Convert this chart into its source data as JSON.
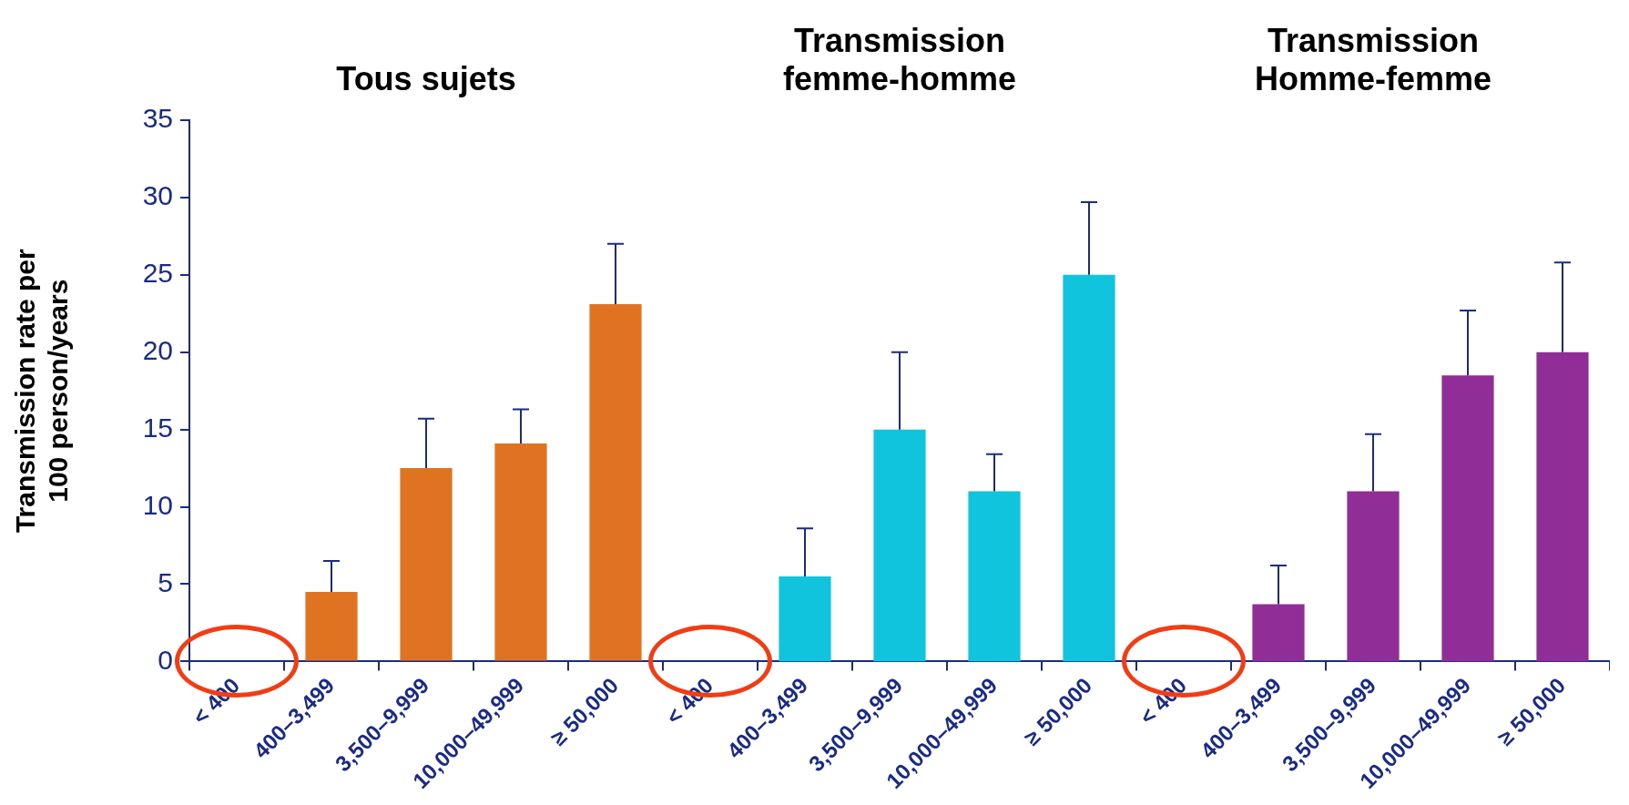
{
  "chart_data": [
    {
      "type": "bar",
      "title": "Tous sujets",
      "ylabel": "Transmission rate per 100 person/years",
      "categories": [
        "< 400",
        "400–3,499",
        "3,500–9,999",
        "10,000–49,999",
        "≥ 50,000"
      ],
      "values": [
        0,
        4.5,
        12.5,
        14.1,
        23.1
      ],
      "errors": [
        null,
        [
          4.5,
          6.5
        ],
        [
          12.5,
          15.7
        ],
        [
          14.1,
          16.3
        ],
        [
          23.1,
          27.0
        ]
      ],
      "color": "#e07322",
      "ylim": [
        0,
        35
      ],
      "yticks": [
        0,
        5,
        10,
        15,
        20,
        25,
        30,
        35
      ],
      "grid": false,
      "legend": false
    },
    {
      "type": "bar",
      "title": "Transmission femme-homme",
      "categories": [
        "< 400",
        "400–3,499",
        "3,500–9,999",
        "10,000–49,999",
        "≥ 50,000"
      ],
      "values": [
        0,
        5.5,
        15,
        11,
        25
      ],
      "errors": [
        null,
        [
          5.5,
          8.6
        ],
        [
          15,
          20.0
        ],
        [
          11,
          13.4
        ],
        [
          25,
          29.7
        ]
      ],
      "color": "#11c4de",
      "ylim": [
        0,
        35
      ],
      "yticks": [
        0,
        5,
        10,
        15,
        20,
        25,
        30,
        35
      ],
      "tick_labels": "x",
      "grid": false,
      "legend": false
    },
    {
      "type": "bar",
      "title": "Transmission Homme-femme",
      "categories": [
        "< 400",
        "400–3,499",
        "3,500–9,999",
        "10,000–49,999",
        "≥ 50,000"
      ],
      "values": [
        0,
        3.7,
        11,
        18.5,
        20
      ],
      "errors": [
        null,
        [
          3.7,
          6.2
        ],
        [
          11,
          14.7
        ],
        [
          18.5,
          22.7
        ],
        [
          20,
          25.8
        ]
      ],
      "color": "#912d96",
      "ylim": [
        0,
        35
      ],
      "yticks": [
        0,
        5,
        10,
        15,
        20,
        25,
        30,
        35
      ],
      "tick_labels": "x",
      "grid": false,
      "legend": false
    }
  ]
}
